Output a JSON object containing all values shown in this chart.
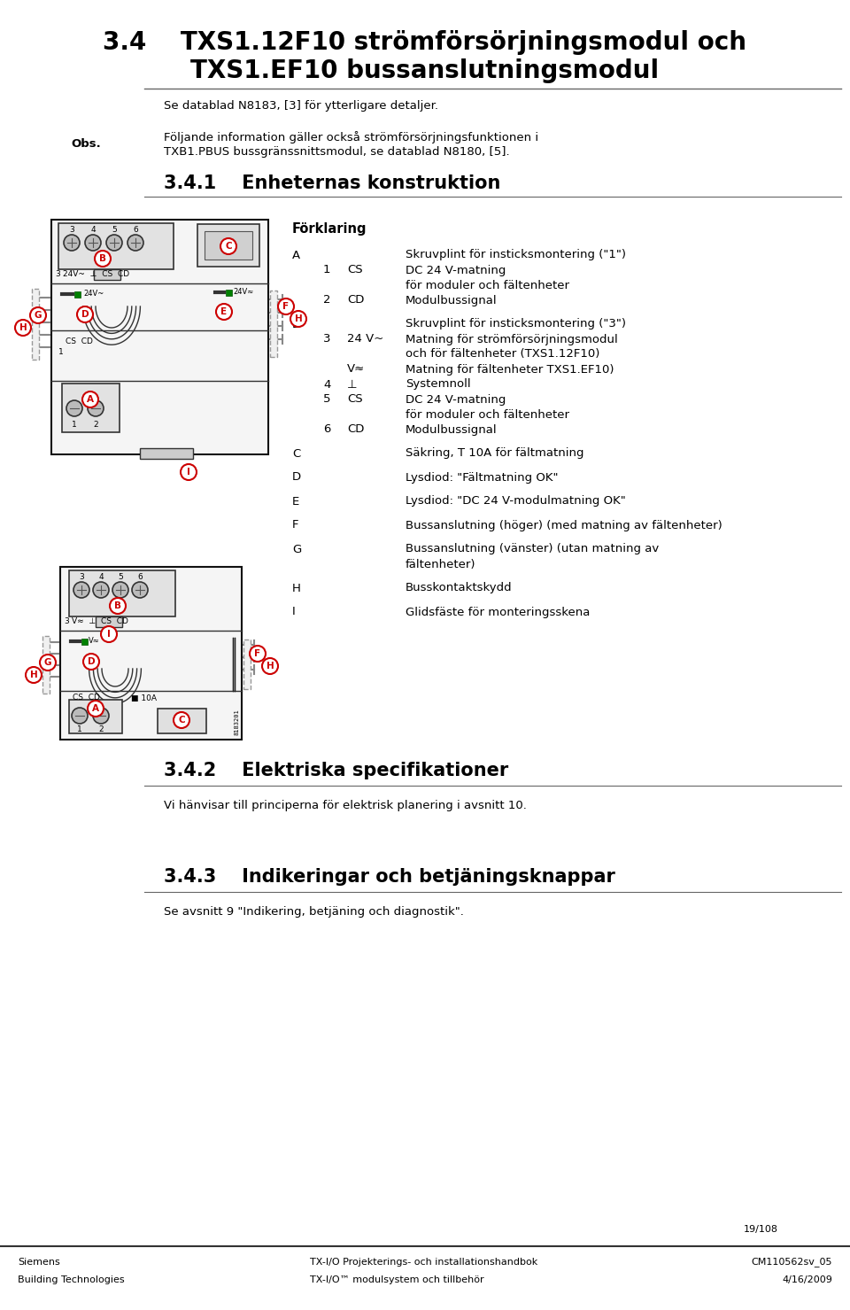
{
  "page_title_line1": "3.4    TXS1.12F10 strömförsörjningsmodul och",
  "page_title_line2": "TXS1.EF10 bussanslutningsmodul",
  "section_note": "Se datablad N8183, [3] för ytterligare detaljer.",
  "obs_label": "Obs.",
  "obs_text_line1": "Följande information gäller också strömförsörjningsfunktionen i",
  "obs_text_line2": "TXB1.PBUS bussgränssnittsmodul, se datablad N8180, [5].",
  "section_341": "3.4.1    Enheternas konstruktion",
  "forklaring_title": "Förklaring",
  "legend_A": "Skruvplint för insticksmontering (\"1\")",
  "legend_A1_num": "1",
  "legend_A1_code": "CS",
  "legend_A1_text": "DC 24 V-matning",
  "legend_A1_text2": "för moduler och fältenheter",
  "legend_A2_num": "2",
  "legend_A2_code": "CD",
  "legend_A2_text": "Modulbussignal",
  "legend_B": "Skruvplint för insticksmontering (\"3\")",
  "legend_B3_num": "3",
  "legend_B3_code": "24 V~",
  "legend_B3_text": "Matning för strömförsörjningsmodul",
  "legend_B3_text2": "och för fältenheter (TXS1.12F10)",
  "legend_Bv_code": "V≈",
  "legend_Bv_text": "Matning för fältenheter TXS1.EF10)",
  "legend_B4_num": "4",
  "legend_B4_code": "⊥",
  "legend_B4_text": "Systemnoll",
  "legend_B5_num": "5",
  "legend_B5_code": "CS",
  "legend_B5_text": "DC 24 V-matning",
  "legend_B5_text2": "för moduler och fältenheter",
  "legend_B6_num": "6",
  "legend_B6_code": "CD",
  "legend_B6_text": "Modulbussignal",
  "legend_C": "Säkring, T 10A för fältmatning",
  "legend_D": "Lysdiod: \"Fältmatning OK\"",
  "legend_E": "Lysdiod: \"DC 24 V-modulmatning OK\"",
  "legend_F": "Bussanslutning (höger) (med matning av fältenheter)",
  "legend_G1": "Bussanslutning (vänster) (utan matning av",
  "legend_G2": "fältenheter)",
  "legend_H": "Busskontaktskydd",
  "legend_I": "Glidsfäste för monteringsskena",
  "section_342": "3.4.2    Elektriska specifikationer",
  "section_342_text": "Vi hänvisar till principerna för elektrisk planering i avsnitt 10.",
  "section_343": "3.4.3    Indikeringar och betjäningsknappar",
  "section_343_text": "Se avsnitt 9 \"Indikering, betjäning och diagnostik\".",
  "page_number": "19/108",
  "footer_left1": "Siemens",
  "footer_left2": "Building Technologies",
  "footer_center1": "TX-I/O Projekterings- och installationshandbok",
  "footer_center2": "TX-I/O™ modulsystem och tillbehör",
  "footer_right1": "CM110562sv_05",
  "footer_right2": "4/16/2009",
  "bg_color": "#ffffff",
  "text_color": "#000000",
  "red_color": "#cc0000",
  "green_color": "#008000",
  "gray_color": "#888888",
  "dark_gray": "#444444",
  "light_gray": "#cccccc",
  "title_fontsize": 20,
  "heading2_fontsize": 15,
  "body_fontsize": 9.5,
  "small_fontsize": 8
}
